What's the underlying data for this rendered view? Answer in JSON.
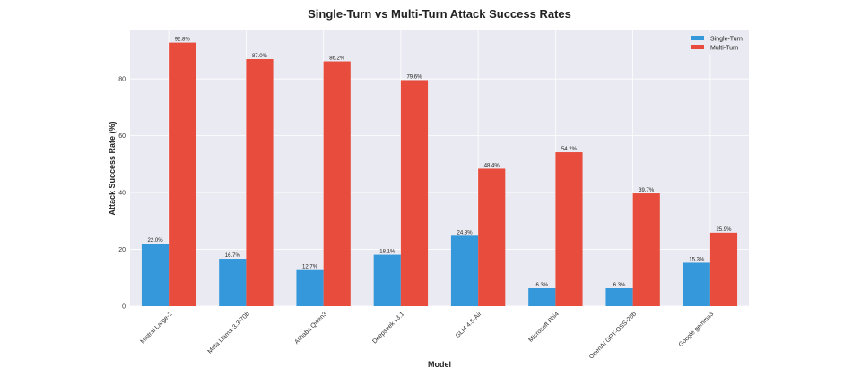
{
  "chart_data": {
    "type": "bar",
    "title": "Single-Turn vs Multi-Turn Attack Success Rates",
    "xlabel": "Model",
    "ylabel": "Attack Success Rate (%)",
    "ylim": [
      0,
      97.4
    ],
    "yticks": [
      0,
      20,
      40,
      60,
      80
    ],
    "grid": true,
    "legend_position": "top-right",
    "categories": [
      "Mistral Large-2",
      "Meta Llama-3.3-70b",
      "Alibaba Qwen3",
      "Deepseek v3.1",
      "GLM 4.5-Air",
      "Microsoft Phi4",
      "OpenAI GPT-OSS-20b",
      "Google gemma3"
    ],
    "series": [
      {
        "name": "Single-Turn",
        "color": "#3498db",
        "values": [
          22.0,
          16.7,
          12.7,
          18.1,
          24.8,
          6.3,
          6.3,
          15.3
        ],
        "labels": [
          "22.0%",
          "16.7%",
          "12.7%",
          "18.1%",
          "24.8%",
          "6.3%",
          "6.3%",
          "15.3%"
        ]
      },
      {
        "name": "Multi-Turn",
        "color": "#e74c3c",
        "values": [
          92.8,
          87.0,
          86.2,
          79.6,
          48.4,
          54.2,
          39.7,
          25.9
        ],
        "labels": [
          "92.8%",
          "87.0%",
          "86.2%",
          "79.6%",
          "48.4%",
          "54.2%",
          "39.7%",
          "25.9%"
        ]
      }
    ]
  }
}
